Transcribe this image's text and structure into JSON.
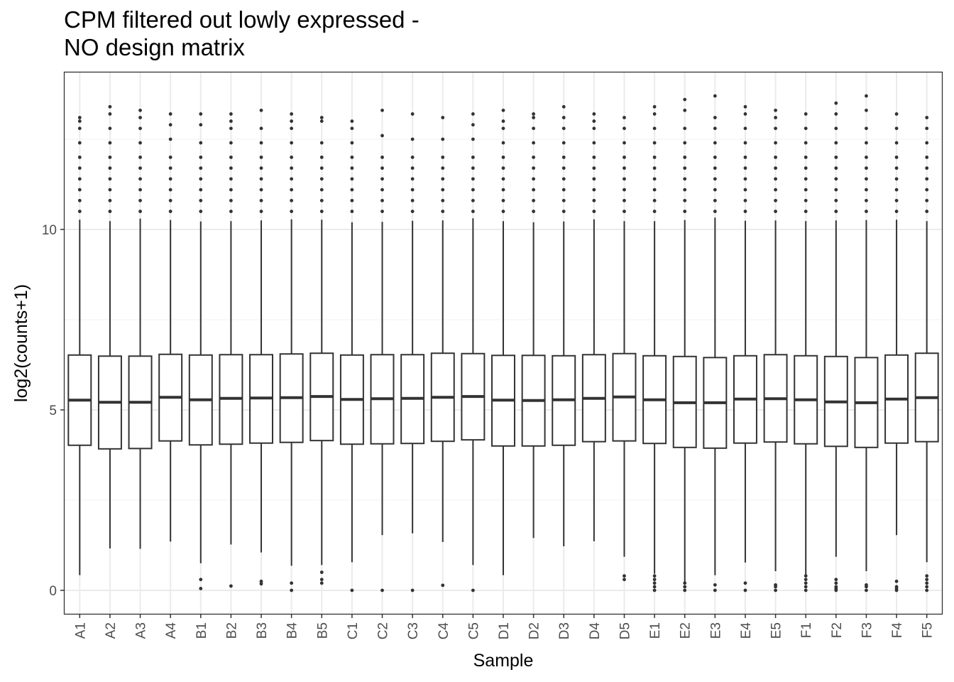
{
  "title": [
    "CPM filtered out lowly expressed -",
    "NO design matrix"
  ],
  "colors": {
    "panel_border": "#333333",
    "grid_major": "#ebebeb",
    "grid_minor": "#f4f4f4",
    "box_stroke": "#333333",
    "outlier": "#333333",
    "box_fill": "#ffffff"
  },
  "chart_data": {
    "type": "boxplot",
    "title": "CPM filtered out lowly expressed - NO design matrix",
    "xlabel": "Sample",
    "ylabel": "log2(counts+1)",
    "ylim": [
      -0.65,
      14.35
    ],
    "yticks": [
      0,
      5,
      10
    ],
    "grid": true,
    "categories": [
      "A1",
      "A2",
      "A3",
      "A4",
      "B1",
      "B2",
      "B3",
      "B4",
      "B5",
      "C1",
      "C2",
      "C3",
      "C4",
      "C5",
      "D1",
      "D2",
      "D3",
      "D4",
      "D5",
      "E1",
      "E2",
      "E3",
      "E4",
      "E5",
      "F1",
      "F2",
      "F3",
      "F4",
      "F5"
    ],
    "boxes": [
      {
        "q1": 4.02,
        "median": 5.27,
        "q3": 6.52,
        "whisker_low": 0.42,
        "whisker_high": 10.27,
        "outliers": [
          10.5,
          10.8,
          11.1,
          11.4,
          11.7,
          12.0,
          12.4,
          12.8,
          13.0,
          13.1
        ]
      },
      {
        "q1": 3.92,
        "median": 5.21,
        "q3": 6.49,
        "whisker_low": 1.16,
        "whisker_high": 10.23,
        "outliers": [
          10.5,
          10.8,
          11.1,
          11.4,
          11.7,
          12.0,
          12.4,
          12.8,
          13.2,
          13.4
        ]
      },
      {
        "q1": 3.93,
        "median": 5.21,
        "q3": 6.49,
        "whisker_low": 1.15,
        "whisker_high": 10.3,
        "outliers": [
          10.5,
          10.8,
          11.1,
          11.4,
          11.7,
          12.0,
          12.4,
          12.8,
          13.1,
          13.3
        ]
      },
      {
        "q1": 4.14,
        "median": 5.35,
        "q3": 6.54,
        "whisker_low": 1.35,
        "whisker_high": 10.26,
        "outliers": [
          10.5,
          10.8,
          11.1,
          11.4,
          11.7,
          12.0,
          12.5,
          12.9,
          13.2
        ]
      },
      {
        "q1": 4.03,
        "median": 5.28,
        "q3": 6.52,
        "whisker_low": 0.75,
        "whisker_high": 10.22,
        "outliers": [
          0.05,
          0.3,
          10.5,
          10.8,
          11.1,
          11.4,
          11.7,
          12.0,
          12.4,
          12.9,
          13.2
        ]
      },
      {
        "q1": 4.05,
        "median": 5.32,
        "q3": 6.53,
        "whisker_low": 1.27,
        "whisker_high": 10.23,
        "outliers": [
          0.12,
          10.5,
          10.8,
          11.1,
          11.4,
          11.7,
          12.0,
          12.4,
          12.8,
          13.0,
          13.2
        ]
      },
      {
        "q1": 4.08,
        "median": 5.33,
        "q3": 6.53,
        "whisker_low": 1.05,
        "whisker_high": 10.25,
        "outliers": [
          0.18,
          0.25,
          10.5,
          10.8,
          11.1,
          11.4,
          11.7,
          12.0,
          12.4,
          12.8,
          13.3
        ]
      },
      {
        "q1": 4.1,
        "median": 5.34,
        "q3": 6.55,
        "whisker_low": 0.68,
        "whisker_high": 10.28,
        "outliers": [
          0.0,
          0.2,
          10.5,
          10.8,
          11.1,
          11.4,
          11.7,
          12.0,
          12.4,
          12.8,
          13.0,
          13.2
        ]
      },
      {
        "q1": 4.15,
        "median": 5.37,
        "q3": 6.57,
        "whisker_low": 0.7,
        "whisker_high": 10.27,
        "outliers": [
          0.2,
          0.3,
          0.5,
          10.5,
          10.8,
          11.1,
          11.4,
          11.7,
          12.0,
          12.4,
          13.0,
          13.1
        ]
      },
      {
        "q1": 4.05,
        "median": 5.29,
        "q3": 6.52,
        "whisker_low": 0.78,
        "whisker_high": 10.2,
        "outliers": [
          0.0,
          10.5,
          10.8,
          11.1,
          11.4,
          11.7,
          12.0,
          12.4,
          12.8,
          13.0
        ]
      },
      {
        "q1": 4.06,
        "median": 5.31,
        "q3": 6.53,
        "whisker_low": 1.53,
        "whisker_high": 10.21,
        "outliers": [
          0.0,
          10.5,
          10.8,
          11.1,
          11.4,
          11.7,
          12.0,
          12.6,
          13.3
        ]
      },
      {
        "q1": 4.07,
        "median": 5.32,
        "q3": 6.53,
        "whisker_low": 1.58,
        "whisker_high": 10.24,
        "outliers": [
          0.0,
          10.5,
          10.8,
          11.1,
          11.4,
          11.7,
          12.0,
          12.5,
          13.2
        ]
      },
      {
        "q1": 4.13,
        "median": 5.35,
        "q3": 6.57,
        "whisker_low": 1.34,
        "whisker_high": 10.25,
        "outliers": [
          0.14,
          10.5,
          10.8,
          11.1,
          11.4,
          11.7,
          12.0,
          12.5,
          13.1
        ]
      },
      {
        "q1": 4.17,
        "median": 5.37,
        "q3": 6.56,
        "whisker_low": 0.7,
        "whisker_high": 10.31,
        "outliers": [
          0.0,
          10.5,
          10.8,
          11.1,
          11.4,
          11.7,
          12.0,
          12.5,
          12.9,
          13.2
        ]
      },
      {
        "q1": 4.0,
        "median": 5.27,
        "q3": 6.51,
        "whisker_low": 0.42,
        "whisker_high": 10.23,
        "outliers": [
          10.5,
          10.8,
          11.1,
          11.4,
          11.7,
          12.0,
          12.4,
          12.8,
          13.0,
          13.3
        ]
      },
      {
        "q1": 4.0,
        "median": 5.26,
        "q3": 6.51,
        "whisker_low": 1.45,
        "whisker_high": 10.2,
        "outliers": [
          10.5,
          10.8,
          11.1,
          11.4,
          11.7,
          12.0,
          12.4,
          12.8,
          13.1,
          13.2
        ]
      },
      {
        "q1": 4.02,
        "median": 5.28,
        "q3": 6.5,
        "whisker_low": 1.22,
        "whisker_high": 10.22,
        "outliers": [
          10.5,
          10.8,
          11.1,
          11.4,
          11.7,
          12.0,
          12.4,
          12.8,
          13.1,
          13.4
        ]
      },
      {
        "q1": 4.12,
        "median": 5.32,
        "q3": 6.53,
        "whisker_low": 1.36,
        "whisker_high": 10.28,
        "outliers": [
          10.5,
          10.8,
          11.1,
          11.4,
          11.7,
          12.0,
          12.4,
          12.8,
          13.0,
          13.2
        ]
      },
      {
        "q1": 4.14,
        "median": 5.36,
        "q3": 6.56,
        "whisker_low": 0.93,
        "whisker_high": 10.23,
        "outliers": [
          0.3,
          0.4,
          10.5,
          10.8,
          11.1,
          11.4,
          11.7,
          12.0,
          12.4,
          12.8,
          13.1
        ]
      },
      {
        "q1": 4.07,
        "median": 5.28,
        "q3": 6.5,
        "whisker_low": 0.46,
        "whisker_high": 10.23,
        "outliers": [
          0.0,
          0.1,
          0.2,
          0.3,
          0.4,
          10.5,
          10.8,
          11.1,
          11.4,
          11.7,
          12.0,
          12.4,
          12.8,
          13.2,
          13.4
        ]
      },
      {
        "q1": 3.96,
        "median": 5.2,
        "q3": 6.48,
        "whisker_low": 0.17,
        "whisker_high": 10.26,
        "outliers": [
          0.0,
          0.1,
          0.2,
          10.5,
          10.8,
          11.1,
          11.4,
          11.7,
          12.0,
          12.4,
          12.8,
          13.3,
          13.6
        ]
      },
      {
        "q1": 3.94,
        "median": 5.2,
        "q3": 6.45,
        "whisker_low": 0.42,
        "whisker_high": 10.33,
        "outliers": [
          0.0,
          0.15,
          10.5,
          10.8,
          11.1,
          11.4,
          11.7,
          12.0,
          12.4,
          12.8,
          13.1,
          13.7
        ]
      },
      {
        "q1": 4.08,
        "median": 5.3,
        "q3": 6.5,
        "whisker_low": 0.77,
        "whisker_high": 10.24,
        "outliers": [
          0.0,
          0.2,
          10.5,
          10.8,
          11.1,
          11.4,
          11.7,
          12.0,
          12.4,
          12.8,
          13.2,
          13.4
        ]
      },
      {
        "q1": 4.11,
        "median": 5.31,
        "q3": 6.53,
        "whisker_low": 0.53,
        "whisker_high": 10.25,
        "outliers": [
          0.0,
          0.1,
          0.15,
          10.5,
          10.8,
          11.1,
          11.4,
          11.7,
          12.0,
          12.4,
          12.8,
          13.1,
          13.3
        ]
      },
      {
        "q1": 4.06,
        "median": 5.28,
        "q3": 6.5,
        "whisker_low": 0.4,
        "whisker_high": 10.23,
        "outliers": [
          0.0,
          0.1,
          0.2,
          0.3,
          0.4,
          10.5,
          10.8,
          11.1,
          11.4,
          11.7,
          12.0,
          12.4,
          12.8,
          13.2
        ]
      },
      {
        "q1": 3.99,
        "median": 5.22,
        "q3": 6.48,
        "whisker_low": 0.93,
        "whisker_high": 10.25,
        "outliers": [
          0.0,
          0.05,
          0.1,
          0.2,
          0.3,
          10.5,
          10.8,
          11.1,
          11.4,
          11.7,
          12.0,
          12.4,
          12.8,
          13.2,
          13.5
        ]
      },
      {
        "q1": 3.96,
        "median": 5.2,
        "q3": 6.45,
        "whisker_low": 0.53,
        "whisker_high": 10.26,
        "outliers": [
          0.0,
          0.1,
          0.15,
          10.5,
          10.8,
          11.1,
          11.4,
          11.7,
          12.0,
          12.4,
          12.8,
          13.3,
          13.7
        ]
      },
      {
        "q1": 4.08,
        "median": 5.3,
        "q3": 6.52,
        "whisker_low": 1.53,
        "whisker_high": 10.27,
        "outliers": [
          0.0,
          0.05,
          0.1,
          0.25,
          10.5,
          10.8,
          11.1,
          11.4,
          11.7,
          12.0,
          12.4,
          12.8,
          13.2
        ]
      },
      {
        "q1": 4.12,
        "median": 5.34,
        "q3": 6.57,
        "whisker_low": 0.78,
        "whisker_high": 10.23,
        "outliers": [
          0.0,
          0.1,
          0.2,
          0.3,
          0.4,
          10.5,
          10.8,
          11.1,
          11.4,
          11.7,
          12.0,
          12.4,
          12.8,
          13.1
        ]
      }
    ]
  }
}
